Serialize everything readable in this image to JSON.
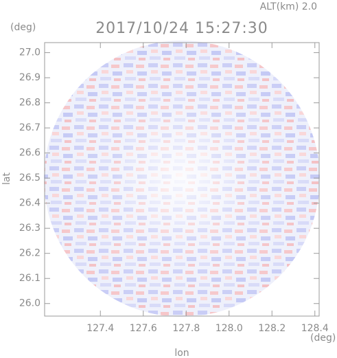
{
  "altitude": "ALT(km) 2.0",
  "chart_data": {
    "type": "ppi",
    "title": "2017/10/24 15:27:30",
    "x_label": "lon",
    "y_label": "lat",
    "x_unit": "(deg)",
    "y_unit": "(deg)",
    "xlim": [
      127.14,
      128.42
    ],
    "ylim": [
      25.95,
      27.04
    ],
    "xticks": [
      127.4,
      127.6,
      127.8,
      {
        "value": 128,
        "label": "128.0"
      },
      128.2,
      128.4
    ],
    "yticks": [
      {
        "value": 26,
        "label": "26.0"
      },
      26.1,
      26.2,
      26.3,
      26.4,
      26.5,
      26.6,
      26.7,
      26.8,
      26.9,
      {
        "value": 27,
        "label": "27.0"
      }
    ]
  }
}
